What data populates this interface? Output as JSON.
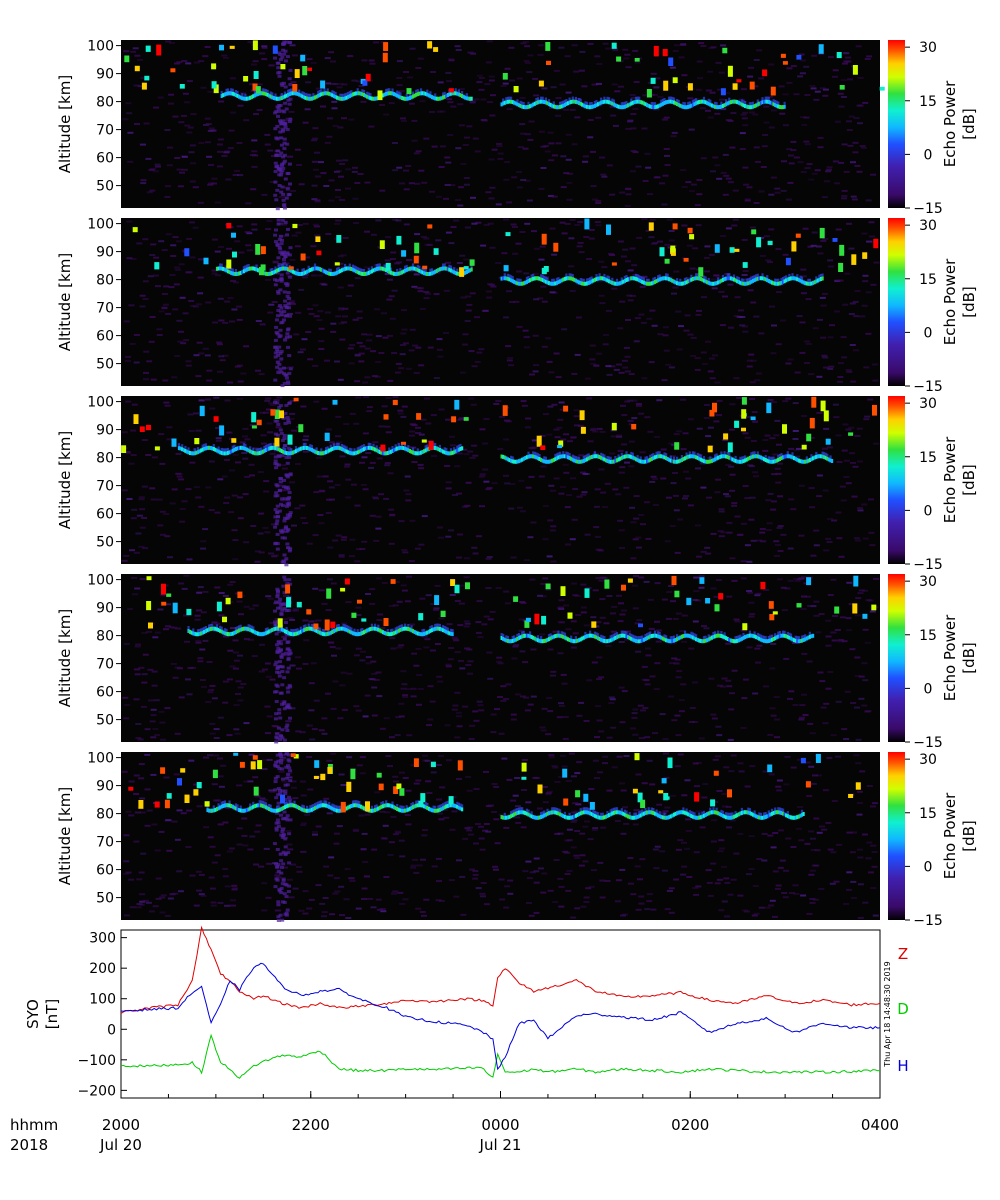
{
  "chart_data": [
    {
      "type": "heatmap",
      "panel": 1,
      "ylabel": "Altitude [km]",
      "colorbar_label": [
        "Echo Power",
        "[dB]"
      ],
      "colorbar_ticks": [
        "30",
        "15",
        "0",
        "−15"
      ],
      "colorbar_range": [
        -15,
        32
      ],
      "y_ticks": [
        "100",
        "90",
        "80",
        "70",
        "60",
        "50"
      ],
      "ylim": [
        42,
        102
      ],
      "x_range_hours": [
        20,
        28
      ],
      "echo_layer": [
        {
          "from": 21.05,
          "to": 23.7,
          "altitude": 82.0
        },
        {
          "from": 24.0,
          "to": 27.0,
          "altitude": 79.0
        }
      ]
    },
    {
      "type": "heatmap",
      "panel": 2,
      "ylabel": "Altitude [km]",
      "colorbar_label": [
        "Echo Power",
        "[dB]"
      ],
      "colorbar_ticks": [
        "30",
        "15",
        "0",
        "−15"
      ],
      "colorbar_range": [
        -15,
        32
      ],
      "y_ticks": [
        "100",
        "90",
        "80",
        "70",
        "60",
        "50"
      ],
      "ylim": [
        42,
        102
      ],
      "x_range_hours": [
        20,
        28
      ],
      "echo_layer": [
        {
          "from": 21.0,
          "to": 23.7,
          "altitude": 83.0
        },
        {
          "from": 24.0,
          "to": 27.4,
          "altitude": 79.5
        }
      ]
    },
    {
      "type": "heatmap",
      "panel": 3,
      "ylabel": "Altitude [km]",
      "colorbar_label": [
        "Echo Power",
        "[dB]"
      ],
      "colorbar_ticks": [
        "30",
        "15",
        "0",
        "−15"
      ],
      "colorbar_range": [
        -15,
        32
      ],
      "y_ticks": [
        "100",
        "90",
        "80",
        "70",
        "60",
        "50"
      ],
      "ylim": [
        42,
        102
      ],
      "x_range_hours": [
        20,
        28
      ],
      "echo_layer": [
        {
          "from": 20.6,
          "to": 23.6,
          "altitude": 82.5
        },
        {
          "from": 24.0,
          "to": 27.5,
          "altitude": 79.5
        }
      ]
    },
    {
      "type": "heatmap",
      "panel": 4,
      "ylabel": "Altitude [km]",
      "colorbar_label": [
        "Echo Power",
        "[dB]"
      ],
      "colorbar_ticks": [
        "30",
        "15",
        "0",
        "−15"
      ],
      "colorbar_range": [
        -15,
        32
      ],
      "y_ticks": [
        "100",
        "90",
        "80",
        "70",
        "60",
        "50"
      ],
      "ylim": [
        42,
        102
      ],
      "x_range_hours": [
        20,
        28
      ],
      "echo_layer": [
        {
          "from": 20.7,
          "to": 23.5,
          "altitude": 81.5
        },
        {
          "from": 24.0,
          "to": 27.3,
          "altitude": 79.0
        }
      ]
    },
    {
      "type": "heatmap",
      "panel": 5,
      "ylabel": "Altitude [km]",
      "colorbar_label": [
        "Echo Power",
        "[dB]"
      ],
      "colorbar_ticks": [
        "30",
        "15",
        "0",
        "−15"
      ],
      "colorbar_range": [
        -15,
        32
      ],
      "y_ticks": [
        "100",
        "90",
        "80",
        "70",
        "60",
        "50"
      ],
      "ylim": [
        42,
        102
      ],
      "x_range_hours": [
        20,
        28
      ],
      "echo_layer": [
        {
          "from": 20.9,
          "to": 23.6,
          "altitude": 82.0
        },
        {
          "from": 24.0,
          "to": 27.2,
          "altitude": 79.5
        }
      ]
    },
    {
      "type": "line",
      "panel": 6,
      "ylabel": [
        "SYO",
        "[nT]"
      ],
      "y_ticks": [
        "300",
        "200",
        "100",
        "0",
        "−100",
        "−200"
      ],
      "ylim": [
        -225,
        325
      ],
      "x": [
        20.0,
        20.3,
        20.6,
        20.75,
        20.85,
        20.95,
        21.05,
        21.15,
        21.25,
        21.4,
        21.5,
        21.7,
        21.9,
        22.1,
        22.3,
        22.5,
        22.8,
        23.0,
        23.3,
        23.6,
        23.8,
        23.92,
        23.97,
        24.05,
        24.2,
        24.35,
        24.5,
        24.8,
        25.0,
        25.3,
        25.6,
        25.9,
        26.2,
        26.5,
        26.8,
        27.1,
        27.4,
        27.7,
        28.0
      ],
      "series": [
        {
          "name": "Z",
          "color": "#e00000",
          "values": [
            55,
            70,
            80,
            160,
            330,
            260,
            180,
            160,
            120,
            100,
            110,
            85,
            70,
            85,
            70,
            75,
            85,
            95,
            90,
            100,
            95,
            80,
            170,
            200,
            150,
            125,
            135,
            160,
            125,
            105,
            110,
            120,
            95,
            85,
            110,
            85,
            95,
            80,
            85
          ]
        },
        {
          "name": "D",
          "color": "#00cc00",
          "values": [
            -120,
            -120,
            -115,
            -110,
            -140,
            -20,
            -110,
            -130,
            -160,
            -120,
            -105,
            -85,
            -90,
            -70,
            -130,
            -135,
            -135,
            -130,
            -132,
            -128,
            -125,
            -160,
            -80,
            -140,
            -140,
            -130,
            -140,
            -130,
            -140,
            -130,
            -135,
            -140,
            -130,
            -135,
            -140,
            -140,
            -140,
            -138,
            -135
          ]
        },
        {
          "name": "H",
          "color": "#0000dd",
          "values": [
            60,
            65,
            70,
            120,
            140,
            20,
            80,
            160,
            130,
            205,
            215,
            140,
            110,
            125,
            130,
            100,
            70,
            40,
            25,
            15,
            -5,
            -35,
            -130,
            -90,
            20,
            30,
            -30,
            45,
            50,
            40,
            30,
            55,
            -10,
            20,
            35,
            -10,
            20,
            5,
            5
          ]
        }
      ]
    }
  ],
  "x_axis": {
    "row1_label": "hhmm",
    "row2_label": "2018",
    "ticks": [
      {
        "hour": 20,
        "label": "2000",
        "date": "Jul 20"
      },
      {
        "hour": 22,
        "label": "2200",
        "date": ""
      },
      {
        "hour": 24,
        "label": "0000",
        "date": "Jul 21"
      },
      {
        "hour": 26,
        "label": "0200",
        "date": ""
      },
      {
        "hour": 28,
        "label": "0400",
        "date": ""
      }
    ]
  },
  "timestamp": "Thu Apr 18 14:48:30 2019",
  "colors": {
    "heatmap_background": "#050505",
    "colormap": [
      "#1a0028",
      "#3a0a6a",
      "#4020b0",
      "#2050ff",
      "#10b8ff",
      "#10f0d0",
      "#30e040",
      "#d0ff00",
      "#ffd000",
      "#ff5000",
      "#ff0000"
    ]
  }
}
